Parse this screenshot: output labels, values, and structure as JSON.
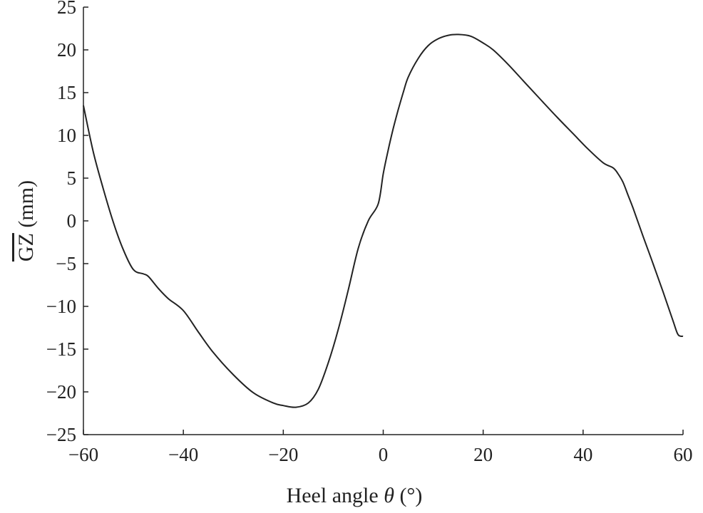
{
  "chart_data": {
    "type": "line",
    "title": "",
    "xlabel": "Heel angle",
    "xlabel_symbol": "θ",
    "xlabel_unit": "(°)",
    "ylabel": "GZ (mm)",
    "ylabel_overline": "GZ",
    "ylabel_unit": "(mm)",
    "xlim": [
      -60,
      60
    ],
    "ylim": [
      -25,
      25
    ],
    "xticks": [
      -60,
      -40,
      -20,
      0,
      20,
      40,
      60
    ],
    "yticks": [
      -25,
      -20,
      -15,
      -10,
      -5,
      0,
      5,
      10,
      15,
      20,
      25
    ],
    "xtick_labels": [
      "−60",
      "−40",
      "−20",
      "0",
      "20",
      "40",
      "60"
    ],
    "ytick_labels": [
      "−25",
      "−20",
      "−15",
      "−10",
      "−5",
      "0",
      "5",
      "10",
      "15",
      "20",
      "25"
    ],
    "grid": false,
    "line_color": "#222222",
    "series": [
      {
        "x": [
          -60,
          -58,
          -56,
          -54,
          -52,
          -50,
          -48,
          -47,
          -45,
          -43,
          -40,
          -37,
          -34,
          -30,
          -26,
          -22,
          -20,
          -17.5,
          -15,
          -13,
          -11,
          -9,
          -7,
          -5,
          -3,
          -1,
          0,
          1,
          2,
          3,
          4,
          5,
          7,
          9,
          11,
          13,
          15,
          17.5,
          20,
          22,
          25,
          28,
          31,
          35,
          38,
          41,
          44,
          46,
          47,
          48,
          49,
          50,
          52,
          54,
          56,
          58,
          59,
          60
        ],
        "y": [
          13.5,
          8,
          3.7,
          -0.2,
          -3.4,
          -5.7,
          -6.2,
          -6.5,
          -7.9,
          -9.1,
          -10.5,
          -13,
          -15.4,
          -18,
          -20.1,
          -21.3,
          -21.6,
          -21.8,
          -21.3,
          -19.7,
          -16.6,
          -12.7,
          -8.1,
          -3.2,
          0,
          2,
          5.5,
          8.3,
          10.8,
          13,
          15,
          16.8,
          19,
          20.5,
          21.3,
          21.7,
          21.8,
          21.6,
          20.8,
          20,
          18.3,
          16.4,
          14.5,
          12,
          10.2,
          8.4,
          6.8,
          6.2,
          5.5,
          4.5,
          3,
          1.5,
          -1.8,
          -5,
          -8.3,
          -11.7,
          -13.3,
          -13.5
        ]
      }
    ]
  }
}
